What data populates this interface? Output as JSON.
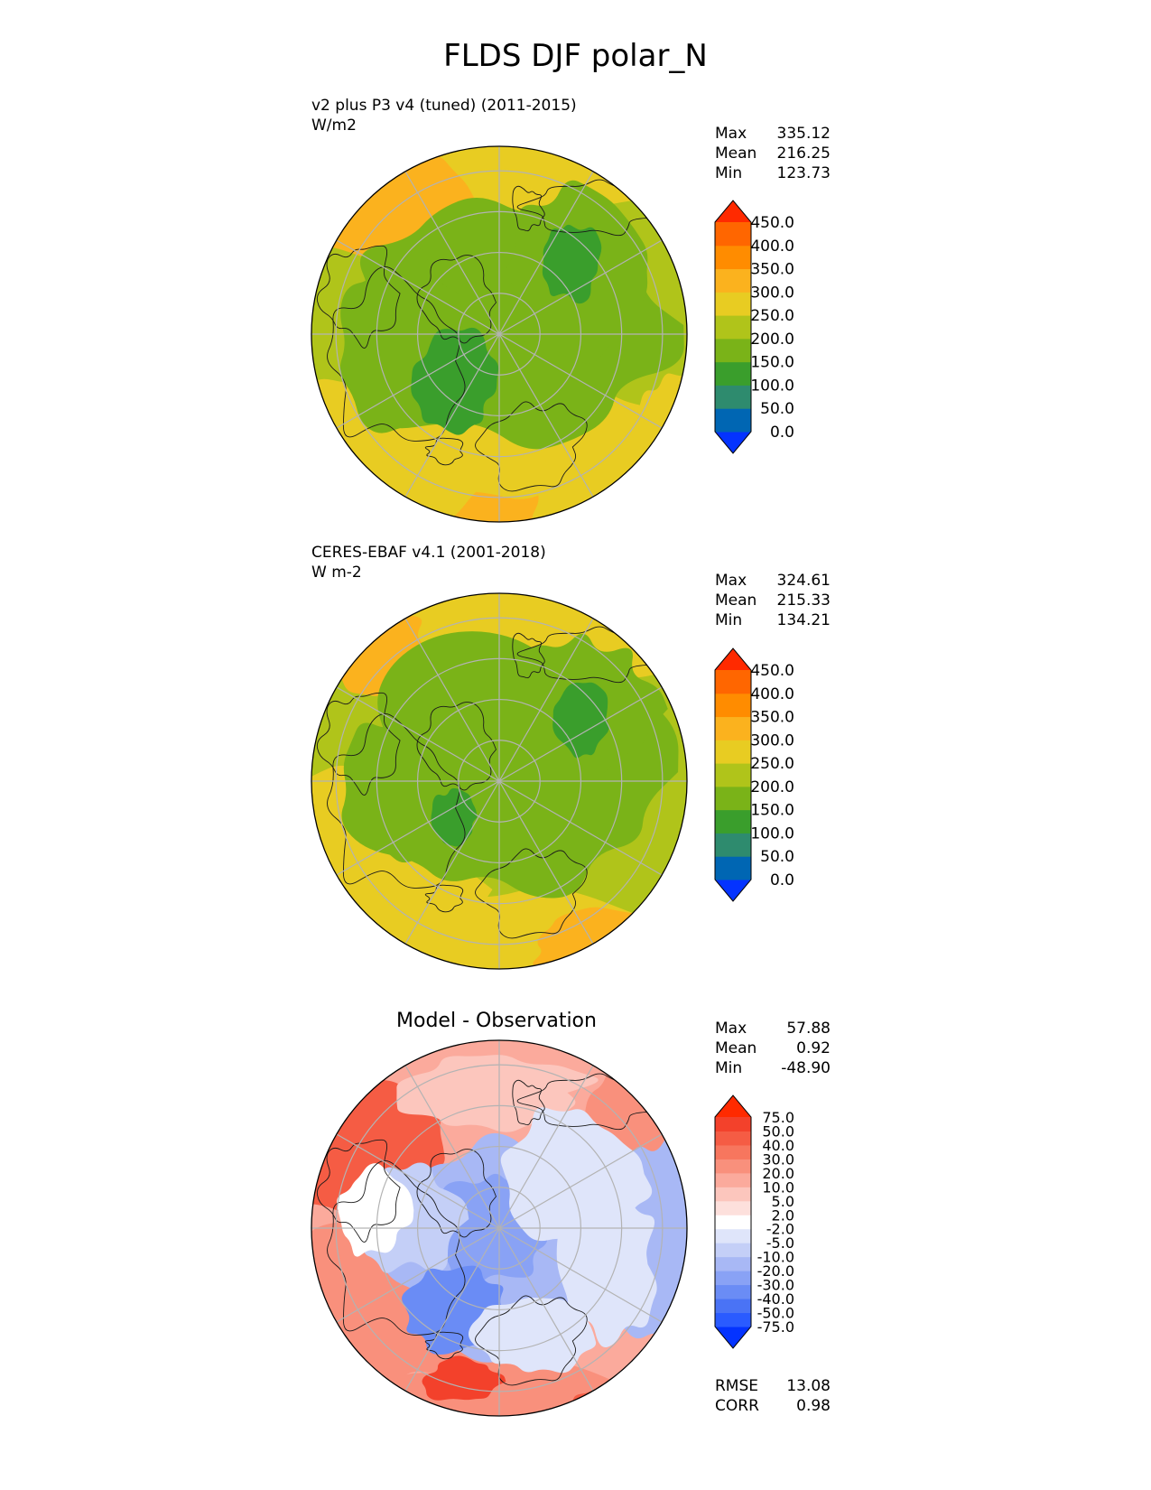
{
  "title": "FLDS DJF polar_N",
  "panels": [
    {
      "id": "test",
      "label_line1": "v2 plus P3 v4 (tuned) (2011-2015)",
      "label_line2": "W/m2",
      "stats": [
        {
          "name": "Max",
          "value": "335.12"
        },
        {
          "name": "Mean",
          "value": "216.25"
        },
        {
          "name": "Min",
          "value": "123.73"
        }
      ],
      "colorbar_ticks": [
        "450.0",
        "400.0",
        "350.0",
        "300.0",
        "250.0",
        "200.0",
        "150.0",
        "100.0",
        "50.0",
        "0.0"
      ]
    },
    {
      "id": "reference",
      "label_line1": "CERES-EBAF v4.1 (2001-2018)",
      "label_line2": "W m-2",
      "stats": [
        {
          "name": "Max",
          "value": "324.61"
        },
        {
          "name": "Mean",
          "value": "215.33"
        },
        {
          "name": "Min",
          "value": "134.21"
        }
      ],
      "colorbar_ticks": [
        "450.0",
        "400.0",
        "350.0",
        "300.0",
        "250.0",
        "200.0",
        "150.0",
        "100.0",
        "50.0",
        "0.0"
      ]
    },
    {
      "id": "difference",
      "title": "Model - Observation",
      "stats": [
        {
          "name": "Max",
          "value": "57.88"
        },
        {
          "name": "Mean",
          "value": "0.92"
        },
        {
          "name": "Min",
          "value": "-48.90"
        }
      ],
      "colorbar_ticks": [
        "75.0",
        "50.0",
        "40.0",
        "30.0",
        "20.0",
        "10.0",
        "5.0",
        "2.0",
        "-2.0",
        "-5.0",
        "-10.0",
        "-20.0",
        "-30.0",
        "-40.0",
        "-50.0",
        "-75.0"
      ],
      "metrics": [
        {
          "name": "RMSE",
          "value": "13.08"
        },
        {
          "name": "CORR",
          "value": "0.98"
        }
      ]
    }
  ],
  "colors": {
    "abs_scale": [
      "#0433ff",
      "#0066b3",
      "#2e8b6e",
      "#3a9e2c",
      "#7ab318",
      "#b0c41a",
      "#e8cc22",
      "#fbb21e",
      "#ff8c00",
      "#ff6600",
      "#ff2a00"
    ],
    "diff_scale": [
      "#0433ff",
      "#2a5bff",
      "#4a73f5",
      "#6a8cf5",
      "#89a2f5",
      "#a8b8f5",
      "#c4cff7",
      "#dfe5fa",
      "#ffffff",
      "#fde0dc",
      "#fcc6bd",
      "#fbaa9c",
      "#f9907c",
      "#f7765e",
      "#f55c44",
      "#f3412b",
      "#ff2a00"
    ],
    "land_outline": "#1a1a1a",
    "grid": "#b3b3b3"
  }
}
